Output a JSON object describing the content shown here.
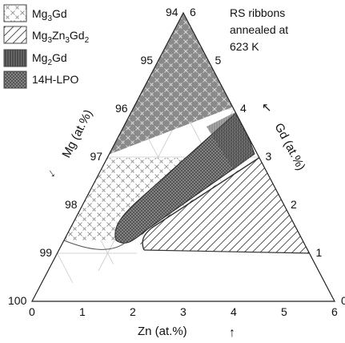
{
  "legend": {
    "items": [
      {
        "id": "mg3gd",
        "base": "Mg",
        "sub1": "3",
        "mid": "Gd",
        "sub2": "",
        "tail": "",
        "sub3": ""
      },
      {
        "id": "mg3zn3gd2",
        "base": "Mg",
        "sub1": "3",
        "mid": "Zn",
        "sub2": "3",
        "tail": "Gd",
        "sub3": "2"
      },
      {
        "id": "mg2gd",
        "base": "Mg",
        "sub1": "2",
        "mid": "Gd",
        "sub2": "",
        "tail": "",
        "sub3": ""
      },
      {
        "id": "lpo",
        "base": "14H-LPO",
        "sub1": "",
        "mid": "",
        "sub2": "",
        "tail": "",
        "sub3": ""
      }
    ]
  },
  "annotation": {
    "line1": "RS ribbons",
    "line2": "annealed at",
    "line3": "623 K"
  },
  "axes": {
    "mg_label": "Mg (at.%)",
    "gd_label": "Gd (at.%)",
    "zn_label": "Zn (at.%)",
    "mg_ticks": [
      "94",
      "95",
      "96",
      "97",
      "98",
      "99",
      "100"
    ],
    "gd_ticks": [
      "6",
      "5",
      "4",
      "3",
      "2",
      "1",
      "0"
    ],
    "zn_ticks": [
      "0",
      "1",
      "2",
      "3",
      "4",
      "5",
      "6"
    ],
    "arrow_down": "↓",
    "arrow_up": "↑",
    "arrow_diag": "↖"
  }
}
